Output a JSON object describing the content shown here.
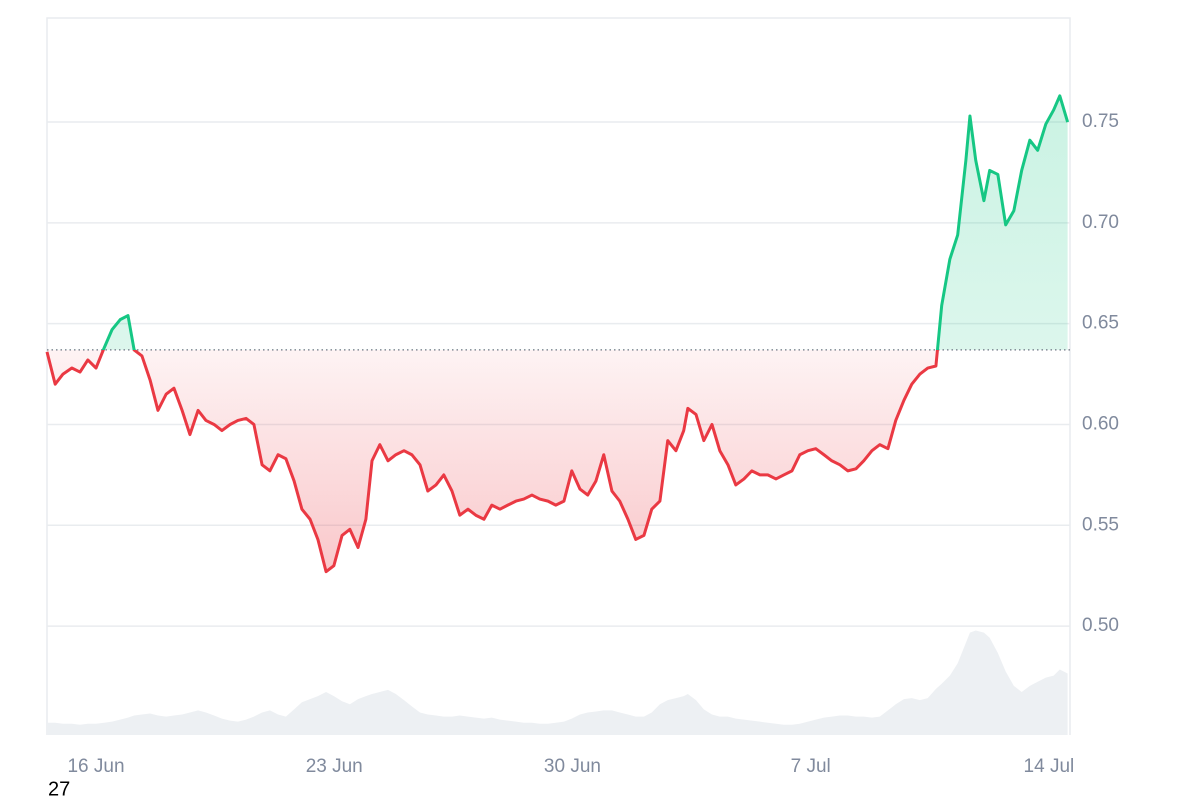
{
  "chart_data": {
    "type": "line",
    "x": [
      -1.44,
      -1.2,
      -0.97,
      -0.71,
      -0.47,
      -0.24,
      0,
      0.24,
      0.47,
      0.71,
      0.94,
      1.12,
      1.35,
      1.59,
      1.82,
      2.06,
      2.29,
      2.53,
      2.76,
      3.0,
      3.23,
      3.47,
      3.7,
      3.94,
      4.17,
      4.41,
      4.64,
      4.88,
      5.11,
      5.35,
      5.58,
      5.82,
      6.05,
      6.29,
      6.52,
      6.76,
      6.99,
      7.23,
      7.46,
      7.7,
      7.93,
      8.11,
      8.34,
      8.58,
      8.81,
      9.05,
      9.28,
      9.52,
      9.75,
      9.99,
      10.22,
      10.46,
      10.69,
      10.93,
      11.16,
      11.4,
      11.63,
      11.87,
      12.1,
      12.34,
      12.57,
      12.81,
      13.04,
      13.28,
      13.51,
      13.75,
      13.98,
      14.22,
      14.45,
      14.69,
      14.92,
      15.16,
      15.39,
      15.63,
      15.86,
      16.1,
      16.33,
      16.57,
      16.8,
      17.04,
      17.27,
      17.39,
      17.63,
      17.86,
      18.1,
      18.33,
      18.57,
      18.8,
      19.04,
      19.27,
      19.51,
      19.74,
      19.98,
      20.21,
      20.45,
      20.68,
      20.92,
      21.15,
      21.39,
      21.62,
      21.86,
      22.09,
      22.33,
      22.56,
      22.8,
      23.03,
      23.27,
      23.5,
      23.74,
      23.97,
      24.21,
      24.44,
      24.68,
      24.85,
      25.09,
      25.32,
      25.56,
      25.68,
      25.85,
      26.09,
      26.26,
      26.5,
      26.73,
      26.97,
      27.2,
      27.44,
      27.67,
      27.91,
      28.14,
      28.32,
      28.55
    ],
    "series": [
      {
        "values": [
          0.636,
          0.62,
          0.625,
          0.628,
          0.626,
          0.632,
          0.628,
          0.638,
          0.647,
          0.652,
          0.654,
          0.637,
          0.634,
          0.622,
          0.607,
          0.615,
          0.618,
          0.607,
          0.595,
          0.607,
          0.602,
          0.6,
          0.597,
          0.6,
          0.602,
          0.603,
          0.6,
          0.58,
          0.577,
          0.585,
          0.583,
          0.572,
          0.558,
          0.553,
          0.543,
          0.527,
          0.53,
          0.545,
          0.548,
          0.539,
          0.553,
          0.582,
          0.59,
          0.582,
          0.585,
          0.587,
          0.585,
          0.58,
          0.567,
          0.57,
          0.575,
          0.567,
          0.555,
          0.558,
          0.555,
          0.553,
          0.56,
          0.558,
          0.56,
          0.562,
          0.563,
          0.565,
          0.563,
          0.562,
          0.56,
          0.562,
          0.577,
          0.568,
          0.565,
          0.572,
          0.585,
          0.567,
          0.562,
          0.553,
          0.543,
          0.545,
          0.558,
          0.562,
          0.592,
          0.587,
          0.597,
          0.608,
          0.605,
          0.592,
          0.6,
          0.587,
          0.58,
          0.57,
          0.573,
          0.577,
          0.575,
          0.575,
          0.573,
          0.575,
          0.577,
          0.585,
          0.587,
          0.588,
          0.585,
          0.582,
          0.58,
          0.577,
          0.578,
          0.582,
          0.587,
          0.59,
          0.588,
          0.602,
          0.612,
          0.62,
          0.625,
          0.628,
          0.629,
          0.659,
          0.682,
          0.694,
          0.731,
          0.753,
          0.731,
          0.711,
          0.726,
          0.724,
          0.699,
          0.706,
          0.726,
          0.741,
          0.736,
          0.749,
          0.756,
          0.763,
          0.75
        ],
        "up_color": "#16c784",
        "down_color": "#ea3943"
      },
      {
        "values": [
          12,
          12,
          11,
          11,
          10,
          11,
          11,
          12,
          13,
          15,
          17,
          19,
          20,
          21,
          19,
          18,
          19,
          20,
          22,
          24,
          22,
          19,
          16,
          14,
          13,
          15,
          18,
          22,
          24,
          20,
          18,
          25,
          32,
          35,
          38,
          42,
          38,
          33,
          30,
          35,
          38,
          40,
          42,
          44,
          40,
          34,
          28,
          22,
          20,
          19,
          18,
          18,
          19,
          18,
          17,
          16,
          17,
          15,
          14,
          13,
          12,
          12,
          11,
          11,
          12,
          13,
          16,
          20,
          22,
          23,
          24,
          24,
          22,
          20,
          18,
          18,
          22,
          30,
          34,
          36,
          38,
          40,
          34,
          25,
          20,
          18,
          18,
          16,
          15,
          14,
          13,
          12,
          11,
          10,
          10,
          11,
          13,
          15,
          17,
          18,
          19,
          19,
          18,
          18,
          17,
          18,
          24,
          30,
          35,
          36,
          34,
          36,
          45,
          50,
          58,
          70,
          90,
          100,
          102,
          100,
          95,
          80,
          62,
          48,
          42,
          48,
          52,
          56,
          58,
          64,
          60
        ],
        "axis": "y2",
        "color": "#edf0f3"
      }
    ],
    "baseline": 0.637,
    "xlim": [
      -1.44,
      28.62
    ],
    "xticks": [
      {
        "value": 0,
        "label": "16 Jun"
      },
      {
        "value": 7,
        "label": "23 Jun"
      },
      {
        "value": 14,
        "label": "30 Jun"
      },
      {
        "value": 21,
        "label": "7 Jul"
      },
      {
        "value": 28,
        "label": "14 Jul"
      }
    ],
    "ylim": [
      0.446,
      0.8016
    ],
    "yticks": [
      {
        "value": 0.5,
        "label": "0.50"
      },
      0.55,
      {
        "value": 0.6,
        "label": "0.60"
      },
      0.65,
      {
        "value": 0.7,
        "label": "0.70"
      },
      0.75
    ],
    "y2lim": [
      0,
      700
    ],
    "grid": true,
    "annotation": "27"
  }
}
